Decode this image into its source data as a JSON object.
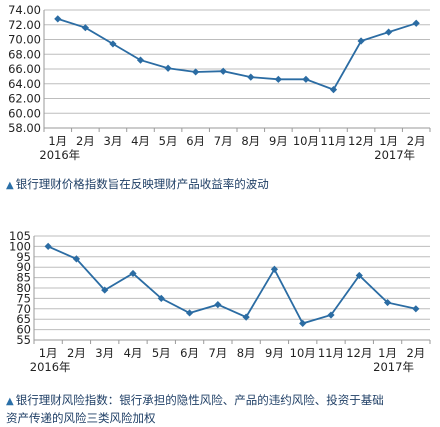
{
  "chart_data": [
    {
      "type": "line",
      "categories": [
        "1月",
        "2月",
        "3月",
        "4月",
        "5月",
        "6月",
        "7月",
        "8月",
        "9月",
        "10月",
        "11月",
        "12月",
        "1月",
        "2月"
      ],
      "year_labels": [
        "2016年",
        "2017年"
      ],
      "values": [
        72.8,
        71.6,
        69.4,
        67.2,
        66.1,
        65.6,
        65.7,
        64.9,
        64.6,
        64.6,
        63.2,
        69.8,
        71.0,
        72.2
      ],
      "yticks": [
        "58.00",
        "60.00",
        "62.00",
        "64.00",
        "66.00",
        "68.00",
        "70.00",
        "72.00",
        "74.00"
      ],
      "ylim": [
        58,
        74
      ],
      "grid": true,
      "color": "#2b6ca3",
      "caption": "银行理财价格指数旨在反映理财产品收益率的波动"
    },
    {
      "type": "line",
      "categories": [
        "1月",
        "2月",
        "3月",
        "4月",
        "5月",
        "6月",
        "7月",
        "8月",
        "9月",
        "10月",
        "11月",
        "12月",
        "1月",
        "2月"
      ],
      "year_labels": [
        "2016年",
        "2017年"
      ],
      "values": [
        100,
        94,
        79,
        87,
        75,
        68,
        72,
        66,
        89,
        63,
        67,
        86,
        73,
        70
      ],
      "yticks": [
        "55",
        "60",
        "65",
        "70",
        "75",
        "80",
        "85",
        "90",
        "95",
        "100",
        "105"
      ],
      "ylim": [
        55,
        105
      ],
      "grid": true,
      "color": "#2b6ca3",
      "caption_lines": [
        "银行理财风险指数：银行承担的隐性风险、产品的违约风险、投资于基础",
        "资产传递的风险三类风险加权"
      ]
    }
  ]
}
